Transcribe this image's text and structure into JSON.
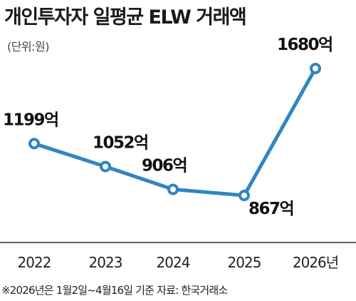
{
  "title": "개인투자자 일평균 ELW 거래액",
  "unit": "(단위:원)",
  "footnote": "※2026년은 1월2일~4월16일 기준  자료: 한국거래소",
  "colors": {
    "line": "#2e86c1",
    "marker_fill": "#ffffff",
    "axis": "#333333"
  },
  "chart_data": {
    "type": "line",
    "categories": [
      "2022",
      "2023",
      "2024",
      "2025",
      "2026년"
    ],
    "values": [
      1199,
      1052,
      906,
      867,
      1680
    ],
    "value_labels": [
      "1199억",
      "1052억",
      "906억",
      "867억",
      "1680억"
    ],
    "unit": "(단위:원)",
    "grid": false,
    "legend": "none"
  }
}
